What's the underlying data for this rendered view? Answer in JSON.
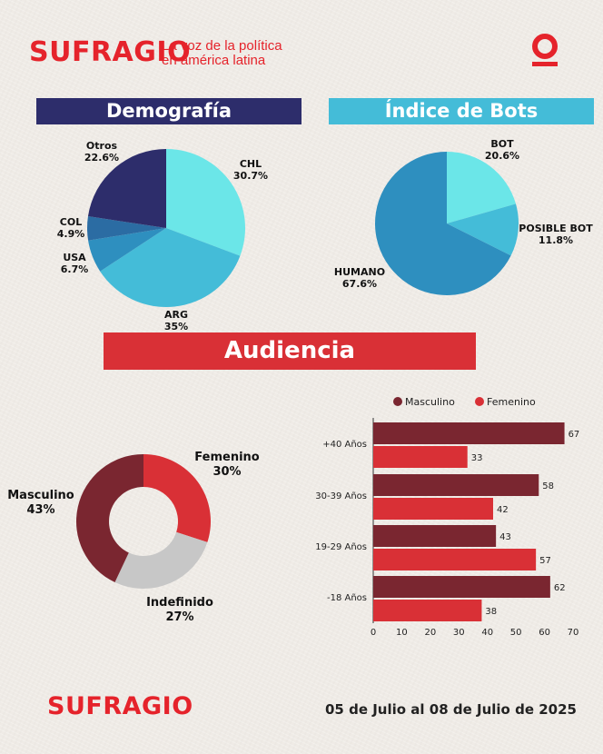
{
  "header": {
    "brand": "SUFRAGIO",
    "tagline_line1": "La voz de la política",
    "tagline_line2": "en américa latina",
    "icon": "o-underline-brand-icon"
  },
  "colors": {
    "brand_red": "#e5232b",
    "navy": "#2d2d6b",
    "light_blue": "#44bcd8",
    "cyan": "#6be6e8",
    "mid_blue": "#2e8fbf",
    "maroon": "#7a2630",
    "red": "#d93036",
    "grey": "#c7c7c7"
  },
  "sections": {
    "demografia": "Demografía",
    "bots": "Índice de Bots",
    "audiencia": "Audiencia"
  },
  "chart_data": [
    {
      "type": "pie",
      "title": "Demografía",
      "slices": [
        {
          "label": "CHL",
          "pct_text": "30.7%",
          "value": 30.7,
          "color": "#6be6e8"
        },
        {
          "label": "ARG",
          "pct_text": "35%",
          "value": 35.0,
          "color": "#44bcd8"
        },
        {
          "label": "USA",
          "pct_text": "6.7%",
          "value": 6.7,
          "color": "#2e8fbf"
        },
        {
          "label": "COL",
          "pct_text": "4.9%",
          "value": 4.9,
          "color": "#2b6ca3"
        },
        {
          "label": "Otros",
          "pct_text": "22.6%",
          "value": 22.6,
          "color": "#2d2d6b"
        }
      ]
    },
    {
      "type": "pie",
      "title": "Índice de Bots",
      "slices": [
        {
          "label": "BOT",
          "pct_text": "20.6%",
          "value": 20.6,
          "color": "#6be6e8"
        },
        {
          "label": "POSIBLE BOT",
          "pct_text": "11.8%",
          "value": 11.8,
          "color": "#44bcd8"
        },
        {
          "label": "HUMANO",
          "pct_text": "67.6%",
          "value": 67.6,
          "color": "#2e8fbf"
        }
      ]
    },
    {
      "type": "pie",
      "title": "Audiencia",
      "donut": true,
      "slices": [
        {
          "label": "Femenino",
          "pct_text": "30%",
          "value": 30,
          "color": "#d93036"
        },
        {
          "label": "Indefinido",
          "pct_text": "27%",
          "value": 27,
          "color": "#c7c7c7"
        },
        {
          "label": "Masculino",
          "pct_text": "43%",
          "value": 43,
          "color": "#7a2630"
        }
      ]
    },
    {
      "type": "bar",
      "orientation": "horizontal",
      "categories": [
        "+40 Años",
        "30-39 Años",
        "19-29 Años",
        "-18 Años"
      ],
      "series": [
        {
          "name": "Masculino",
          "values": [
            67,
            58,
            43,
            62
          ],
          "color": "#7a2630"
        },
        {
          "name": "Femenino",
          "values": [
            33,
            42,
            57,
            38
          ],
          "color": "#d93036"
        }
      ],
      "xlim": [
        0,
        70
      ],
      "xticks": [
        0,
        10,
        20,
        30,
        40,
        50,
        60,
        70
      ],
      "legend": "top"
    }
  ],
  "footer": {
    "brand": "SUFRAGIO",
    "date_range": "05 de Julio al 08 de Julio de 2025"
  }
}
